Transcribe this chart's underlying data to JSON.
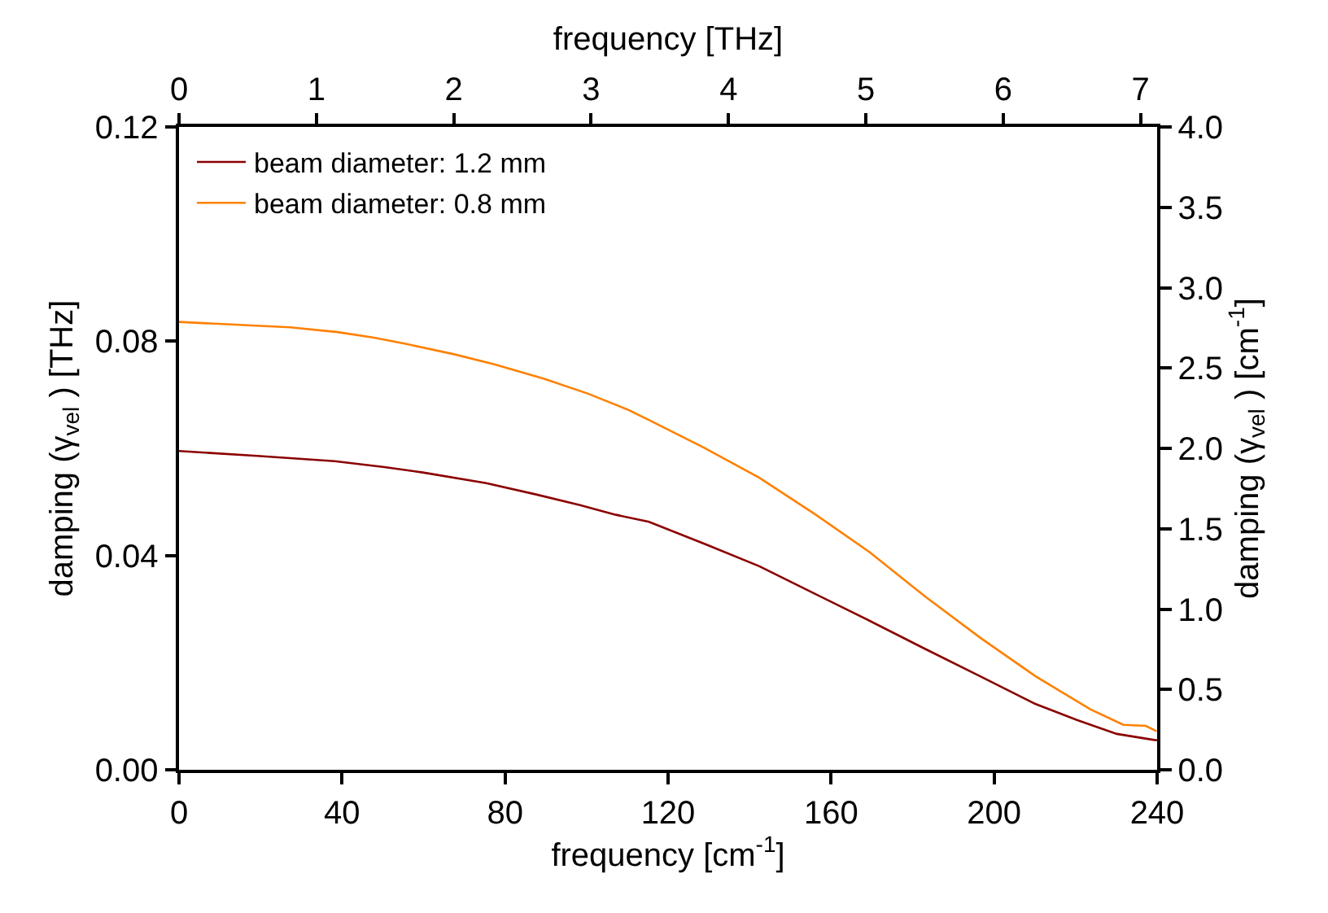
{
  "chart_data": {
    "type": "line",
    "xlabel": "frequency [cm$^{-1}$]",
    "ylabel": "damping (γ$_{vel}$ ) [THz]",
    "y2label": "damping (γ$_{vel}$ ) [cm$^{-1}$]",
    "x2label": "frequency [THz]",
    "xlim": [
      0,
      240
    ],
    "xticks": [
      0,
      40,
      80,
      120,
      160,
      200,
      240
    ],
    "ylim": [
      0,
      0.12
    ],
    "yticks": [
      {
        "value": 0,
        "label": "0.00"
      },
      {
        "value": 0.04,
        "label": "0.04"
      },
      {
        "value": 0.08,
        "label": "0.08"
      },
      {
        "value": 0.12,
        "label": "0.12"
      }
    ],
    "y2lim": [
      0,
      4
    ],
    "y2ticks": [
      {
        "value": 0,
        "label": "0.0"
      },
      {
        "value": 0.5,
        "label": "0.5"
      },
      {
        "value": 1,
        "label": "1.0"
      },
      {
        "value": 1.5,
        "label": "1.5"
      },
      {
        "value": 2,
        "label": "2.0"
      },
      {
        "value": 2.5,
        "label": "2.5"
      },
      {
        "value": 3,
        "label": "3.0"
      },
      {
        "value": 3.5,
        "label": "3.5"
      },
      {
        "value": 4,
        "label": "4.0"
      }
    ],
    "x2lim": [
      0,
      7.12
    ],
    "x2ticks": [
      0,
      1,
      2,
      3,
      4,
      5,
      6,
      7
    ],
    "legend": "top left",
    "grid": false,
    "marker": "none",
    "line_style": "solid",
    "series": [
      {
        "name": "beam diameter: 1.2 mm",
        "color": "#8b0000",
        "x": [
          0,
          19.2,
          38.2,
          50.4,
          59.8,
          75.4,
          87.6,
          98.4,
          107.2,
          115.3,
          128.9,
          142.4,
          155.9,
          169.5,
          183,
          196.5,
          210.1,
          220.3,
          230.1,
          239,
          240
        ],
        "values": [
          0.0595,
          0.0586,
          0.0576,
          0.0565,
          0.0555,
          0.0535,
          0.0514,
          0.0494,
          0.0476,
          0.0463,
          0.0422,
          0.038,
          0.0329,
          0.0278,
          0.0226,
          0.0175,
          0.0123,
          0.0093,
          0.0067,
          0.0056,
          0.0055
        ]
      },
      {
        "name": "beam diameter: 0.8 mm",
        "color": "#ff8000",
        "x": [
          0,
          27.3,
          38.9,
          47.6,
          55.1,
          67.3,
          77.4,
          89.6,
          100.4,
          109.9,
          115.3,
          128.9,
          142.4,
          155.9,
          169.5,
          183,
          196.5,
          210.1,
          223.6,
          231.7,
          237.2,
          239.9
        ],
        "values": [
          0.0836,
          0.0826,
          0.0817,
          0.0807,
          0.0796,
          0.0776,
          0.0757,
          0.073,
          0.0702,
          0.0673,
          0.0653,
          0.0601,
          0.0545,
          0.0478,
          0.0406,
          0.0324,
          0.0247,
          0.0175,
          0.0113,
          0.0084,
          0.0082,
          0.0072
        ]
      }
    ]
  }
}
